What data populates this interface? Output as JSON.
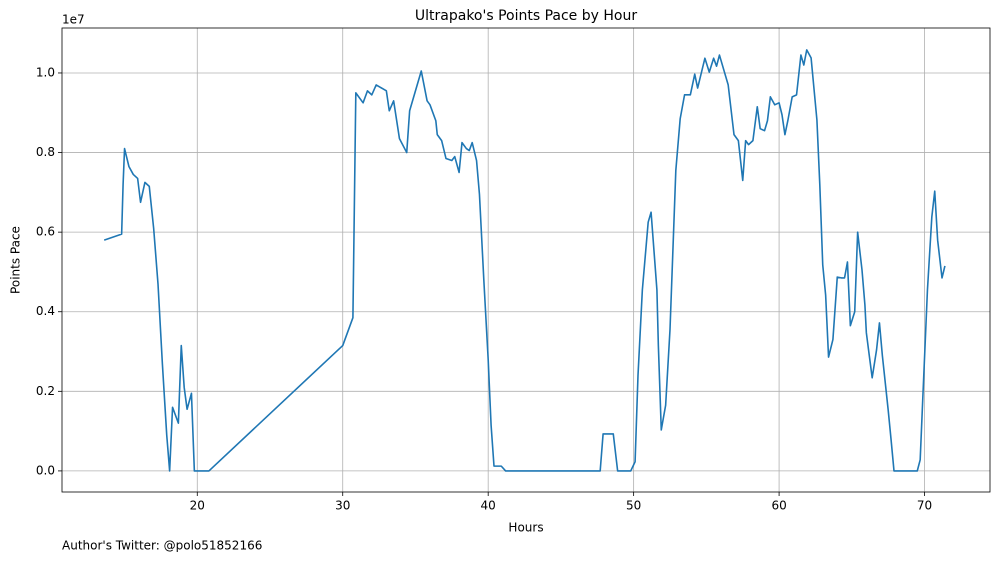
{
  "chart_data": {
    "type": "line",
    "title": "Ultrapako's Points Pace by Hour",
    "x_label": "Hours",
    "y_label": "Points Pace",
    "y_offset_label": "1e7",
    "footnote": "Author's Twitter: @polo51852166",
    "color": "#1f77b4",
    "grid": true,
    "xlim": [
      10.7,
      74.5
    ],
    "xticks": [
      20,
      30,
      40,
      50,
      60,
      70
    ],
    "ylim": [
      -0.053,
      1.113
    ],
    "yticks": [
      {
        "value": 0,
        "label": "0.0"
      },
      0.2,
      0.4,
      0.6,
      0.8,
      {
        "value": 1,
        "label": "1.0"
      }
    ],
    "x": [
      13.6,
      14.8,
      14.9,
      15.0,
      15.3,
      15.6,
      15.9,
      16.1,
      16.4,
      16.7,
      17.0,
      17.3,
      17.6,
      17.9,
      18.1,
      18.3,
      18.7,
      18.9,
      19.1,
      19.3,
      19.6,
      19.8,
      20.8,
      30.0,
      30.7,
      30.9,
      31.4,
      31.7,
      32.0,
      32.3,
      33.0,
      33.2,
      33.5,
      33.9,
      34.4,
      34.6,
      35.0,
      35.4,
      35.8,
      36.0,
      36.4,
      36.5,
      36.8,
      37.1,
      37.5,
      37.7,
      38.0,
      38.2,
      38.5,
      38.7,
      38.9,
      39.2,
      39.4,
      39.7,
      40.0,
      40.2,
      40.4,
      40.9,
      41.2,
      47.7,
      47.9,
      48.6,
      48.9,
      49.8,
      50.1,
      50.3,
      50.6,
      51.0,
      51.2,
      51.6,
      51.7,
      51.9,
      52.2,
      52.5,
      52.9,
      53.2,
      53.5,
      53.9,
      54.2,
      54.4,
      54.9,
      55.2,
      55.5,
      55.7,
      55.9,
      56.5,
      56.9,
      57.2,
      57.5,
      57.7,
      57.9,
      58.2,
      58.5,
      58.7,
      59.0,
      59.2,
      59.4,
      59.7,
      60.0,
      60.2,
      60.4,
      60.6,
      60.9,
      61.2,
      61.5,
      61.7,
      61.9,
      62.2,
      62.6,
      62.8,
      63.0,
      63.2,
      63.4,
      63.7,
      64.0,
      64.3,
      64.5,
      64.7,
      64.9,
      65.2,
      65.4,
      65.7,
      65.9,
      66.0,
      66.2,
      66.4,
      66.7,
      66.9,
      67.1,
      67.5,
      67.7,
      67.9,
      69.5,
      69.7,
      69.9,
      70.2,
      70.5,
      70.7,
      70.9,
      71.2,
      71.4
    ],
    "values": [
      0.58,
      0.595,
      0.72,
      0.81,
      0.765,
      0.745,
      0.735,
      0.675,
      0.725,
      0.715,
      0.61,
      0.47,
      0.27,
      0.09,
      0,
      0.16,
      0.12,
      0.315,
      0.21,
      0.155,
      0.195,
      0,
      0,
      0.315,
      0.385,
      0.95,
      0.925,
      0.955,
      0.945,
      0.97,
      0.955,
      0.905,
      0.93,
      0.835,
      0.8,
      0.905,
      0.955,
      1.005,
      0.93,
      0.92,
      0.88,
      0.845,
      0.83,
      0.785,
      0.78,
      0.79,
      0.75,
      0.825,
      0.81,
      0.805,
      0.825,
      0.78,
      0.695,
      0.48,
      0.28,
      0.115,
      0.012,
      0.012,
      0,
      0,
      0.093,
      0.093,
      0,
      0,
      0.023,
      0.24,
      0.455,
      0.625,
      0.65,
      0.455,
      0.315,
      0.103,
      0.165,
      0.355,
      0.755,
      0.885,
      0.945,
      0.945,
      0.997,
      0.962,
      1.037,
      1.002,
      1.037,
      1.017,
      1.045,
      0.97,
      0.845,
      0.83,
      0.73,
      0.83,
      0.82,
      0.83,
      0.915,
      0.86,
      0.855,
      0.88,
      0.94,
      0.92,
      0.925,
      0.895,
      0.845,
      0.88,
      0.94,
      0.945,
      1.045,
      1.02,
      1.058,
      1.038,
      0.882,
      0.718,
      0.518,
      0.442,
      0.286,
      0.33,
      0.487,
      0.485,
      0.485,
      0.525,
      0.365,
      0.4,
      0.6,
      0.505,
      0.417,
      0.347,
      0.29,
      0.234,
      0.304,
      0.372,
      0.29,
      0.153,
      0.078,
      0,
      0,
      0.028,
      0.2,
      0.455,
      0.638,
      0.703,
      0.58,
      0.485,
      0.515
    ]
  }
}
